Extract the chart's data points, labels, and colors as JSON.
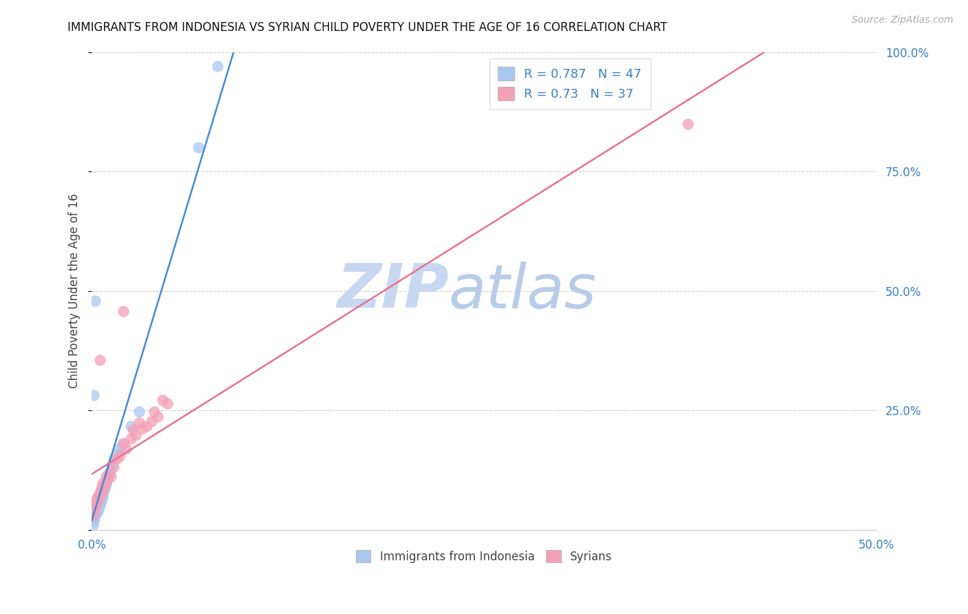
{
  "title": "IMMIGRANTS FROM INDONESIA VS SYRIAN CHILD POVERTY UNDER THE AGE OF 16 CORRELATION CHART",
  "source": "Source: ZipAtlas.com",
  "ylabel": "Child Poverty Under the Age of 16",
  "xlim": [
    0.0,
    0.5
  ],
  "ylim": [
    0.0,
    1.0
  ],
  "xticks": [
    0.0,
    0.1,
    0.2,
    0.3,
    0.4,
    0.5
  ],
  "xticklabels": [
    "0.0%",
    "",
    "",
    "",
    "",
    "50.0%"
  ],
  "yticks": [
    0.0,
    0.25,
    0.5,
    0.75,
    1.0
  ],
  "yticklabels_right": [
    "",
    "25.0%",
    "50.0%",
    "75.0%",
    "100.0%"
  ],
  "blue_R": 0.787,
  "blue_N": 47,
  "pink_R": 0.73,
  "pink_N": 37,
  "blue_dot_color": "#A8C8F0",
  "pink_dot_color": "#F4A0B8",
  "blue_line_color": "#4488D0",
  "pink_line_color": "#E87090",
  "watermark_zip_color": "#C8D8F0",
  "watermark_atlas_color": "#B8CCE8",
  "background_color": "#FFFFFF",
  "blue_scatter_x": [
    0.0008,
    0.0012,
    0.0015,
    0.0018,
    0.002,
    0.0022,
    0.0025,
    0.0025,
    0.0028,
    0.003,
    0.003,
    0.0032,
    0.0035,
    0.0035,
    0.0038,
    0.004,
    0.0042,
    0.0045,
    0.0048,
    0.005,
    0.0052,
    0.0055,
    0.0058,
    0.006,
    0.0062,
    0.0065,
    0.0068,
    0.007,
    0.0075,
    0.008,
    0.0085,
    0.009,
    0.0095,
    0.01,
    0.011,
    0.012,
    0.013,
    0.014,
    0.016,
    0.002,
    0.018,
    0.02,
    0.025,
    0.03,
    0.001,
    0.068,
    0.08
  ],
  "blue_scatter_y": [
    0.01,
    0.018,
    0.025,
    0.03,
    0.035,
    0.04,
    0.038,
    0.05,
    0.045,
    0.035,
    0.055,
    0.06,
    0.04,
    0.058,
    0.065,
    0.04,
    0.055,
    0.062,
    0.072,
    0.05,
    0.068,
    0.06,
    0.078,
    0.06,
    0.072,
    0.065,
    0.078,
    0.07,
    0.08,
    0.088,
    0.092,
    0.098,
    0.105,
    0.108,
    0.118,
    0.128,
    0.138,
    0.148,
    0.16,
    0.48,
    0.172,
    0.182,
    0.218,
    0.248,
    0.282,
    0.8,
    0.97
  ],
  "pink_scatter_x": [
    0.0008,
    0.0015,
    0.002,
    0.0025,
    0.003,
    0.0035,
    0.004,
    0.0045,
    0.005,
    0.0055,
    0.006,
    0.0065,
    0.007,
    0.008,
    0.009,
    0.01,
    0.011,
    0.012,
    0.014,
    0.016,
    0.018,
    0.02,
    0.022,
    0.025,
    0.026,
    0.028,
    0.03,
    0.032,
    0.035,
    0.038,
    0.04,
    0.042,
    0.045,
    0.048,
    0.005,
    0.38,
    0.02
  ],
  "pink_scatter_y": [
    0.03,
    0.042,
    0.05,
    0.06,
    0.058,
    0.068,
    0.062,
    0.075,
    0.072,
    0.082,
    0.078,
    0.09,
    0.098,
    0.092,
    0.112,
    0.105,
    0.118,
    0.112,
    0.132,
    0.15,
    0.155,
    0.182,
    0.17,
    0.192,
    0.21,
    0.198,
    0.225,
    0.212,
    0.218,
    0.228,
    0.248,
    0.238,
    0.272,
    0.265,
    0.355,
    0.85,
    0.458
  ],
  "blue_line_x0": 0.0,
  "blue_line_x1": 0.115,
  "pink_line_x0": 0.0,
  "pink_line_x1": 0.5
}
